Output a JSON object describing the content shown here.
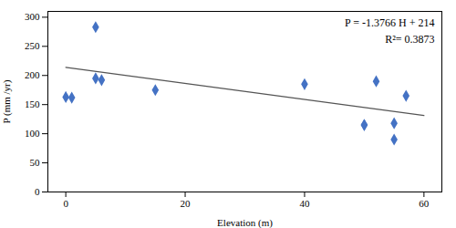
{
  "chart_data": {
    "type": "scatter",
    "xlabel": "Elevation (m)",
    "ylabel": "P (mm /yr)",
    "annotations": [
      "P = -1.3766 H + 214",
      "R²= 0.3873"
    ],
    "series": [
      {
        "type": "scatter",
        "color": "#4472C4",
        "marker": "diamond",
        "x": [
          0,
          1,
          5,
          5,
          6,
          15,
          40,
          50,
          50,
          52,
          55,
          55,
          57
        ],
        "values": [
          163,
          162,
          283,
          195,
          192,
          175,
          185,
          115,
          115,
          190,
          90,
          118,
          165
        ]
      },
      {
        "type": "line",
        "color": "#555555",
        "x": [
          0,
          60
        ],
        "values": [
          214,
          131.404
        ]
      }
    ],
    "xlim": [
      -3,
      63
    ],
    "ylim": [
      0,
      310
    ],
    "xticks": [
      0,
      20,
      40,
      60
    ],
    "yticks": [
      0,
      50,
      100,
      150,
      200,
      250,
      300
    ],
    "grid": false
  }
}
